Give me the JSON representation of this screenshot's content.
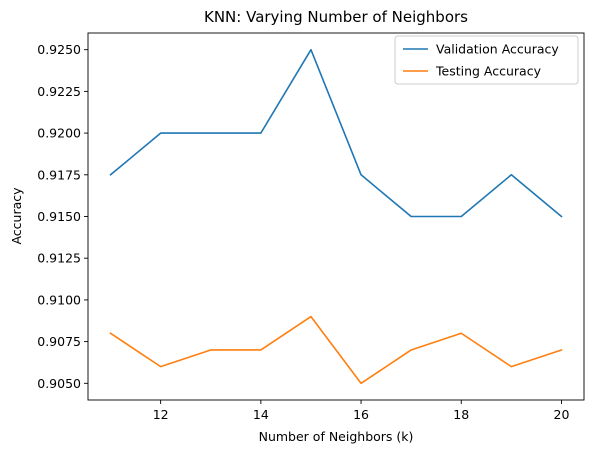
{
  "chart_data": {
    "type": "line",
    "title": "KNN: Varying Number of Neighbors",
    "xlabel": "Number of Neighbors (k)",
    "ylabel": "Accuracy",
    "x": [
      11,
      12,
      13,
      14,
      15,
      16,
      17,
      18,
      19,
      20
    ],
    "xlim": [
      10.55,
      20.45
    ],
    "ylim": [
      0.904,
      0.926
    ],
    "x_ticks": [
      12,
      14,
      16,
      18,
      20
    ],
    "y_ticks": [
      0.905,
      0.9075,
      0.91,
      0.9125,
      0.915,
      0.9175,
      0.92,
      0.9225,
      0.925
    ],
    "y_tick_labels": [
      "0.9050",
      "0.9075",
      "0.9100",
      "0.9125",
      "0.9150",
      "0.9175",
      "0.9200",
      "0.9225",
      "0.9250"
    ],
    "grid": false,
    "legend_position": "top-right",
    "series": [
      {
        "name": "Validation Accuracy",
        "color": "#1f77b4",
        "values": [
          0.9175,
          0.92,
          0.92,
          0.92,
          0.925,
          0.9175,
          0.915,
          0.915,
          0.9175,
          0.915
        ]
      },
      {
        "name": "Testing Accuracy",
        "color": "#ff7f0e",
        "values": [
          0.908,
          0.906,
          0.907,
          0.907,
          0.909,
          0.905,
          0.907,
          0.908,
          0.906,
          0.907
        ]
      }
    ]
  }
}
